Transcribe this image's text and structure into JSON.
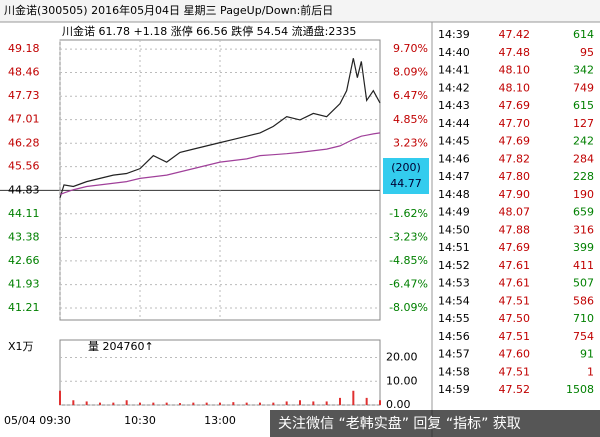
{
  "window_title": "川金诺(300505) 2016年05月04日 星期三 PageUp/Down:前后日",
  "chart_data": [
    {
      "type": "line",
      "title": "川金诺 61.78 +1.18 涨停 66.56 跌停 54.54 流通盘:2335",
      "x": [
        0,
        3,
        10,
        20,
        30,
        40,
        50,
        60,
        70,
        80,
        90,
        100,
        110,
        120,
        130,
        140,
        150,
        160,
        170,
        180,
        190,
        200,
        210,
        215,
        220,
        223,
        226,
        230,
        235,
        240
      ],
      "series": [
        {
          "color": "#222222",
          "values": [
            44.6,
            45.0,
            44.95,
            45.1,
            45.2,
            45.3,
            45.35,
            45.5,
            45.9,
            45.7,
            46.0,
            46.1,
            46.2,
            46.3,
            46.4,
            46.5,
            46.6,
            46.8,
            47.1,
            47.0,
            47.2,
            47.1,
            47.5,
            47.9,
            48.9,
            48.3,
            48.8,
            47.6,
            47.9,
            47.52
          ]
        },
        {
          "color": "#a0409a",
          "values": [
            44.7,
            44.75,
            44.85,
            44.95,
            45.0,
            45.05,
            45.1,
            45.2,
            45.25,
            45.3,
            45.4,
            45.5,
            45.6,
            45.7,
            45.75,
            45.8,
            45.9,
            45.93,
            45.96,
            46.0,
            46.05,
            46.1,
            46.2,
            46.3,
            46.4,
            46.45,
            46.5,
            46.53,
            46.57,
            46.6
          ]
        }
      ],
      "xlim": [
        0,
        240
      ],
      "xticks": [
        {
          "value": 0,
          "label": "05/04 09:30"
        },
        {
          "value": 60,
          "label": "10:30"
        },
        {
          "value": 120,
          "label": "13:00"
        }
      ],
      "ylim": [
        40.84,
        49.46
      ],
      "yticks": [
        49.18,
        48.46,
        47.73,
        47.01,
        46.28,
        45.56,
        44.83,
        44.11,
        43.38,
        42.66,
        41.93,
        41.21
      ],
      "y2lim": [
        -8.9,
        10.33
      ],
      "y2ticks": [
        {
          "value": 9.7,
          "label": "9.70%"
        },
        {
          "value": 8.09,
          "label": "8.09%"
        },
        {
          "value": 6.47,
          "label": "6.47%"
        },
        {
          "value": 4.85,
          "label": "4.85%"
        },
        {
          "value": 3.23,
          "label": "3.23%"
        },
        {
          "value": -1.62,
          "label": "-1.62%"
        },
        {
          "value": -3.23,
          "label": "-3.23%"
        },
        {
          "value": -4.85,
          "label": "-4.85%"
        },
        {
          "value": -6.47,
          "label": "-6.47%"
        },
        {
          "value": -8.09,
          "label": "-8.09%"
        }
      ],
      "baseline": 44.83,
      "grid": true
    },
    {
      "type": "bar",
      "title": "量 204760↑",
      "unit": "X1万",
      "color": "#e03030",
      "x": [
        0,
        10,
        20,
        30,
        40,
        50,
        60,
        70,
        80,
        90,
        100,
        110,
        120,
        130,
        140,
        150,
        160,
        170,
        180,
        190,
        200,
        210,
        220,
        230,
        240
      ],
      "values": [
        6,
        2,
        1.5,
        1,
        1,
        2,
        1,
        1,
        1,
        0.8,
        1,
        1,
        1,
        1.2,
        1,
        1,
        1,
        1.5,
        2,
        1.5,
        1.5,
        3,
        6,
        3,
        2
      ],
      "xlim": [
        0,
        240
      ],
      "ylim": [
        0,
        27.4
      ],
      "yticks": [
        {
          "value": 20,
          "label": "20.00"
        },
        {
          "value": 10,
          "label": "10.00"
        },
        {
          "value": 0,
          "label": "0.00"
        }
      ]
    }
  ],
  "cursor_box": {
    "label": "(200)",
    "price": "44.77"
  },
  "time_sales": {
    "rows": [
      [
        "14:39",
        "47.42",
        "614"
      ],
      [
        "14:40",
        "47.48",
        "95"
      ],
      [
        "14:41",
        "48.10",
        "342"
      ],
      [
        "14:42",
        "48.10",
        "749"
      ],
      [
        "14:43",
        "47.69",
        "615"
      ],
      [
        "14:44",
        "47.70",
        "127"
      ],
      [
        "14:45",
        "47.69",
        "242"
      ],
      [
        "14:46",
        "47.82",
        "284"
      ],
      [
        "14:47",
        "47.80",
        "228"
      ],
      [
        "14:48",
        "47.90",
        "190"
      ],
      [
        "14:49",
        "48.07",
        "659"
      ],
      [
        "14:50",
        "47.88",
        "316"
      ],
      [
        "14:51",
        "47.69",
        "399"
      ],
      [
        "14:52",
        "47.61",
        "411"
      ],
      [
        "14:53",
        "47.61",
        "507"
      ],
      [
        "14:54",
        "47.51",
        "586"
      ],
      [
        "14:55",
        "47.50",
        "710"
      ],
      [
        "14:56",
        "47.51",
        "754"
      ],
      [
        "14:57",
        "47.60",
        "91"
      ],
      [
        "14:58",
        "47.51",
        "1"
      ],
      [
        "14:59",
        "47.52",
        "1508"
      ]
    ]
  },
  "banner": "关注微信 “老韩实盘” 回复 “指标” 获取"
}
